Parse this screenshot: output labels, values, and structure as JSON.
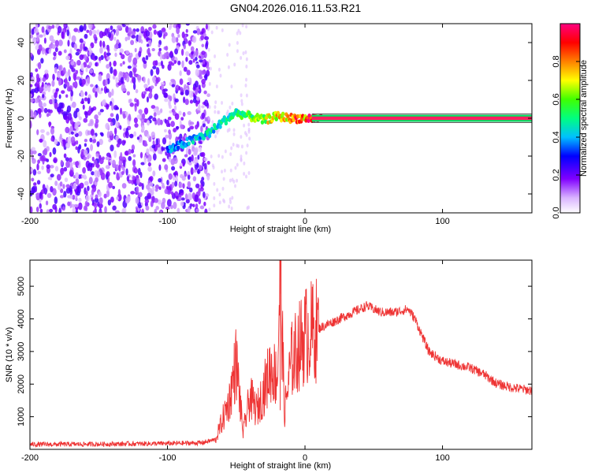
{
  "title": "GN04.2026.016.11.53.R21",
  "colors": {
    "snr_line": "#ee3333",
    "axis": "#000000",
    "background": "#ffffff"
  },
  "chart_data": [
    {
      "type": "heatmap",
      "name": "spectrogram",
      "xlabel": "Height of straight line (km)",
      "ylabel": "Frequency (Hz)",
      "xlim": [
        -200,
        165
      ],
      "ylim": [
        -50,
        50
      ],
      "x_ticks": [
        -200,
        -100,
        0,
        100
      ],
      "x_tick_labels": [
        "-200",
        "-100",
        "0",
        "100"
      ],
      "y_ticks": [
        -40,
        -20,
        0,
        20,
        40
      ],
      "y_tick_labels": [
        "-40",
        "-20",
        "0",
        "20",
        "40"
      ],
      "colorbar": {
        "label": "Normalized spectral amplitude",
        "range": [
          0,
          1
        ],
        "ticks": [
          0.0,
          0.2,
          0.4,
          0.6,
          0.8
        ],
        "tick_labels": [
          "0.0",
          "0.2",
          "0.4",
          "0.6",
          "0.8"
        ]
      },
      "noise_region": {
        "x_range": [
          -200,
          -70
        ],
        "level": 0.15
      },
      "signal_trace": {
        "x": [
          -100,
          -90,
          -80,
          -70,
          -60,
          -50,
          -40,
          -30,
          -20,
          -10,
          0,
          10,
          165
        ],
        "freq": [
          -17,
          -14,
          -11,
          -8,
          -2,
          3,
          1,
          -1,
          1,
          0,
          0,
          0,
          0
        ],
        "amplitude": [
          0.4,
          0.4,
          0.45,
          0.5,
          0.5,
          0.55,
          0.6,
          0.7,
          0.8,
          0.85,
          0.9,
          0.95,
          0.95
        ]
      }
    },
    {
      "type": "line",
      "name": "snr",
      "xlabel": "Height of straight line (km)",
      "ylabel": "SNR (10 * v/v)",
      "xlim": [
        -200,
        165
      ],
      "ylim": [
        0,
        5800
      ],
      "x_ticks": [
        -200,
        -100,
        0,
        100
      ],
      "x_tick_labels": [
        "-200",
        "-100",
        "0",
        "100"
      ],
      "y_ticks": [
        1000,
        2000,
        3000,
        4000,
        5000
      ],
      "y_tick_labels": [
        "1000",
        "2000",
        "3000",
        "4000",
        "5000"
      ],
      "series": [
        {
          "name": "SNR",
          "x": [
            -200,
            -150,
            -100,
            -75,
            -65,
            -55,
            -50,
            -45,
            -40,
            -35,
            -30,
            -25,
            -20,
            -18,
            -15,
            -10,
            -5,
            0,
            10,
            20,
            30,
            40,
            45,
            55,
            65,
            75,
            80,
            90,
            100,
            110,
            120,
            130,
            140,
            150,
            165
          ],
          "values": [
            150,
            160,
            180,
            200,
            300,
            1500,
            2700,
            500,
            1600,
            1200,
            1800,
            2500,
            2200,
            5800,
            1100,
            2700,
            3100,
            3500,
            3700,
            3900,
            4100,
            4300,
            4400,
            4200,
            4200,
            4300,
            4000,
            3000,
            2700,
            2600,
            2500,
            2300,
            2000,
            1900,
            1800
          ]
        }
      ]
    }
  ]
}
